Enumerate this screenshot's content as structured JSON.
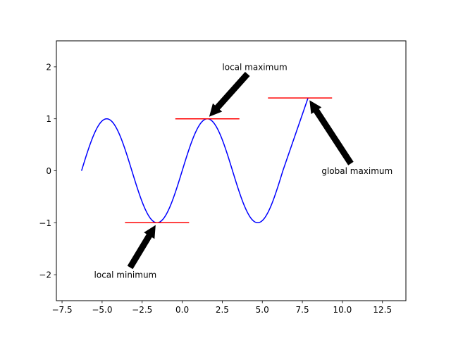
{
  "chart_data": {
    "type": "line",
    "title": "",
    "xlabel": "",
    "ylabel": "",
    "xlim": [
      -7.854,
      13.963
    ],
    "ylim": [
      -2.5,
      2.5
    ],
    "xticks": [
      -7.5,
      -5.0,
      -2.5,
      0.0,
      2.5,
      5.0,
      7.5,
      10.0,
      12.5
    ],
    "xtick_labels": [
      "−7.5",
      "−5.0",
      "−2.5",
      "0.0",
      "2.5",
      "5.0",
      "7.5",
      "10.0",
      "12.5"
    ],
    "yticks": [
      -2,
      -1,
      0,
      1,
      2
    ],
    "ytick_labels": [
      "−2",
      "−1",
      "0",
      "1",
      "2"
    ],
    "grid": false,
    "series": [
      {
        "function": "sin",
        "x_range": [
          -6.2832,
          6.2832
        ],
        "color": "#0000ff"
      },
      {
        "function": "linear",
        "x": [
          6.2832,
          7.854
        ],
        "y": [
          0.0,
          1.4
        ],
        "color": "#0000ff"
      }
    ],
    "hlines": [
      {
        "y": -1.0,
        "x_range": [
          -3.5708,
          0.4292
        ],
        "color": "#ff0000"
      },
      {
        "y": 1.0,
        "x_range": [
          -0.4292,
          3.5708
        ],
        "color": "#ff0000"
      },
      {
        "y": 1.4,
        "x_range": [
          5.354,
          9.354
        ],
        "color": "#ff0000"
      }
    ],
    "annotations": [
      {
        "text": "local minimum",
        "xy": [
          -1.5708,
          -1.0
        ],
        "xytext": [
          -5.5,
          -2.0
        ],
        "ha": "left"
      },
      {
        "text": "local maximum",
        "xy": [
          1.5708,
          1.0
        ],
        "xytext": [
          2.5,
          2.0
        ],
        "ha": "left"
      },
      {
        "text": "global maximum",
        "xy": [
          7.854,
          1.4
        ],
        "xytext": [
          8.7,
          0.0
        ],
        "ha": "left"
      }
    ]
  }
}
